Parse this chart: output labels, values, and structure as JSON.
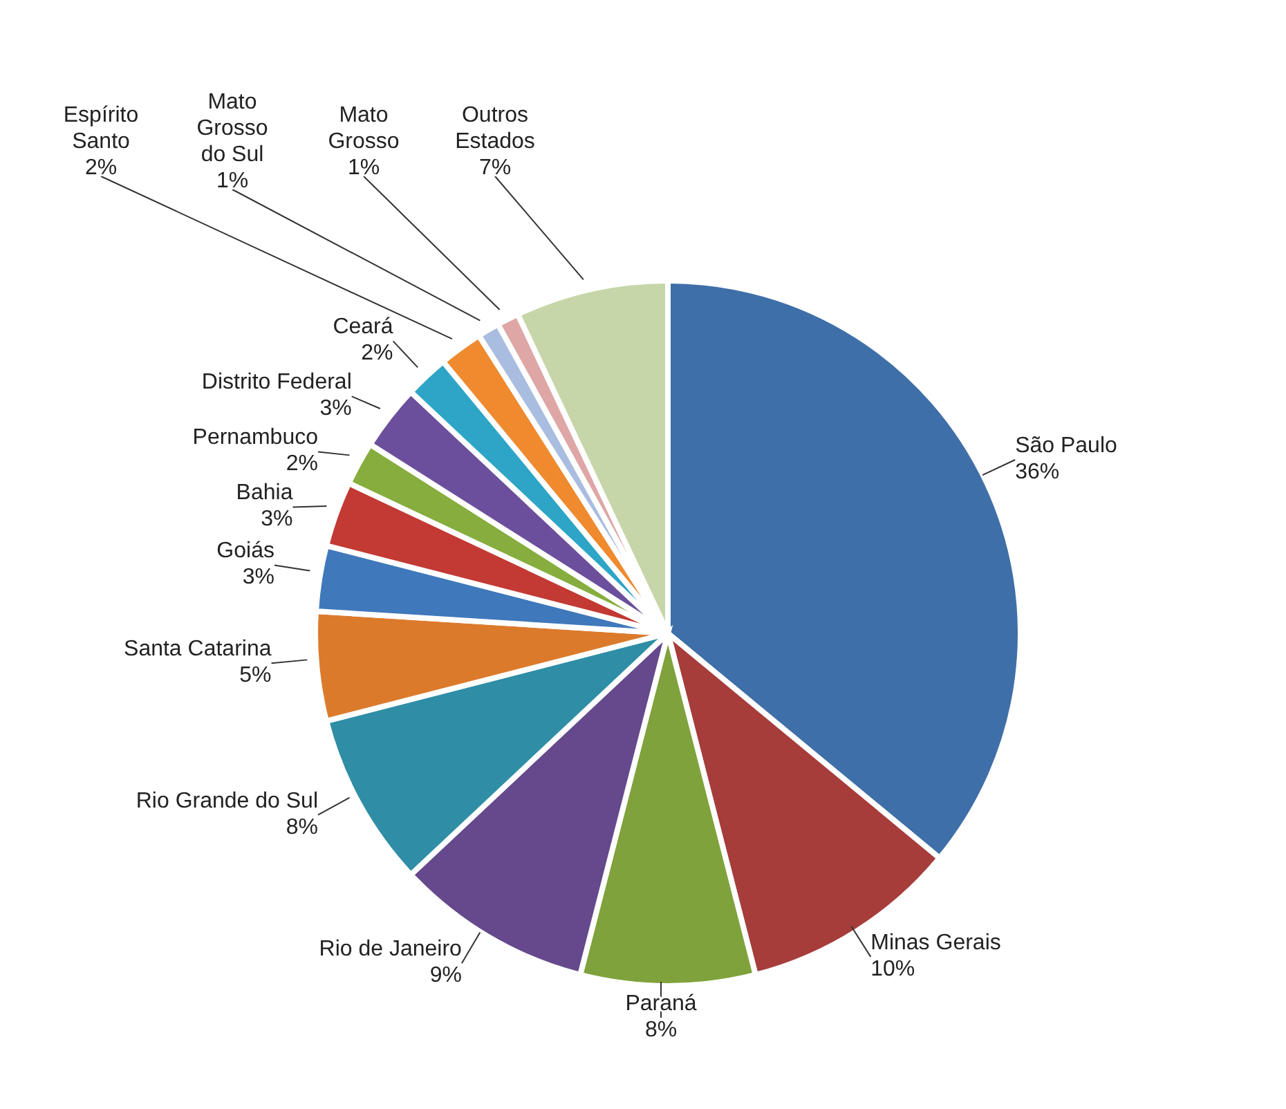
{
  "chart_data": {
    "type": "pie",
    "categories": [
      "São Paulo",
      "Minas Gerais",
      "Paraná",
      "Rio de Janeiro",
      "Rio Grande do Sul",
      "Santa Catarina",
      "Goiás",
      "Bahia",
      "Pernambuco",
      "Distrito Federal",
      "Ceará",
      "Espírito Santo",
      "Mato Grosso do Sul",
      "Mato Grosso",
      "Outros Estados"
    ],
    "values": [
      36,
      10,
      8,
      9,
      8,
      5,
      3,
      3,
      2,
      3,
      2,
      2,
      1,
      1,
      7
    ],
    "value_labels": [
      "36%",
      "10%",
      "8%",
      "9%",
      "8%",
      "5%",
      "3%",
      "3%",
      "2%",
      "3%",
      "2%",
      "2%",
      "1%",
      "1%",
      "7%"
    ],
    "colors": [
      "#3f6fa8",
      "#a63d3b",
      "#7fa23c",
      "#65498c",
      "#2f8ea6",
      "#dc7a2c",
      "#3f78bb",
      "#c23a33",
      "#86ad3d",
      "#6c4f9c",
      "#2ea5c7",
      "#ef8a2f",
      "#a9bde0",
      "#dfa6a6",
      "#c6d6a8"
    ]
  }
}
